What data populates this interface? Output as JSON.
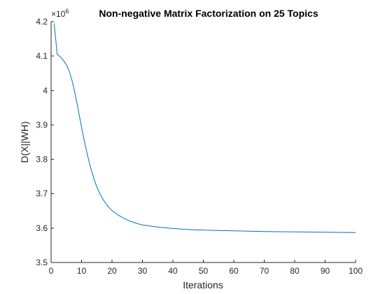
{
  "chart_data": {
    "type": "line",
    "title": "Non-negative Matrix Factorization on 25 Topics",
    "xlabel": "Iterations",
    "ylabel": "D(X||WH)",
    "y_exponent_label": "×10",
    "y_exponent_power": "6",
    "xlim": [
      0,
      100
    ],
    "ylim": [
      3.5,
      4.2
    ],
    "y_scale_factor": 1000000,
    "x_ticks": [
      0,
      10,
      20,
      30,
      40,
      50,
      60,
      70,
      80,
      90,
      100
    ],
    "x_tick_labels": [
      "0",
      "10",
      "20",
      "30",
      "40",
      "50",
      "60",
      "70",
      "80",
      "90",
      "100"
    ],
    "y_ticks": [
      3.5,
      3.6,
      3.7,
      3.8,
      3.9,
      4.0,
      4.1,
      4.2
    ],
    "y_tick_labels": [
      "3.5",
      "3.6",
      "3.7",
      "3.8",
      "3.9",
      "4",
      "4.1",
      "4.2"
    ],
    "grid": false,
    "legend": false,
    "line_color": "#0072BD",
    "series": [
      {
        "x": [
          1,
          2,
          3,
          4,
          5,
          6,
          7,
          8,
          9,
          10,
          11,
          12,
          13,
          14,
          15,
          16,
          17,
          18,
          19,
          20,
          22,
          24,
          26,
          28,
          30,
          35,
          40,
          45,
          50,
          55,
          60,
          65,
          70,
          75,
          80,
          85,
          90,
          95,
          100
        ],
        "values": [
          4.195,
          4.105,
          4.098,
          4.088,
          4.075,
          4.055,
          4.025,
          3.985,
          3.94,
          3.893,
          3.85,
          3.81,
          3.775,
          3.745,
          3.72,
          3.7,
          3.684,
          3.671,
          3.66,
          3.651,
          3.638,
          3.628,
          3.62,
          3.614,
          3.609,
          3.603,
          3.599,
          3.596,
          3.594,
          3.593,
          3.592,
          3.591,
          3.59,
          3.5895,
          3.589,
          3.5885,
          3.588,
          3.5875,
          3.587
        ]
      }
    ]
  }
}
